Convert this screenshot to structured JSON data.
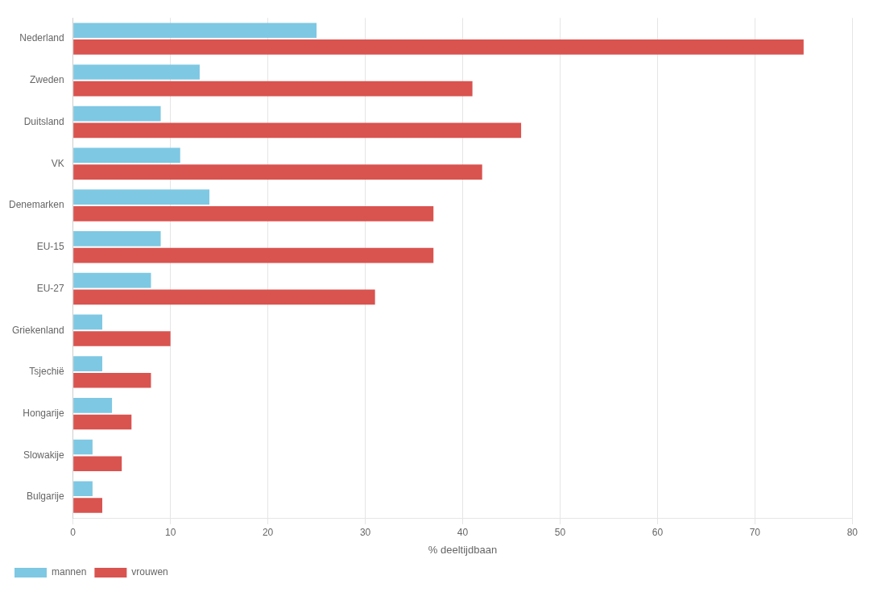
{
  "chart_data": {
    "type": "bar",
    "orientation": "horizontal",
    "categories": [
      "Nederland",
      "Zweden",
      "Duitsland",
      "VK",
      "Denemarken",
      "EU-15",
      "EU-27",
      "Griekenland",
      "Tsjechië",
      "Hongarije",
      "Slowakije",
      "Bulgarije"
    ],
    "series": [
      {
        "name": "mannen",
        "color": "#7ec8e3",
        "values": [
          25,
          13,
          9,
          11,
          14,
          9,
          8,
          3,
          3,
          4,
          2,
          2
        ]
      },
      {
        "name": "vrouwen",
        "color": "#d9534f",
        "values": [
          75,
          41,
          46,
          42,
          37,
          37,
          31,
          10,
          8,
          6,
          5,
          3
        ]
      }
    ],
    "xlabel": "% deeltijdbaan",
    "xlim": [
      0,
      80
    ],
    "xticks": [
      0,
      10,
      20,
      30,
      40,
      50,
      60,
      70,
      80
    ],
    "grid": true,
    "legend": "lower left"
  }
}
